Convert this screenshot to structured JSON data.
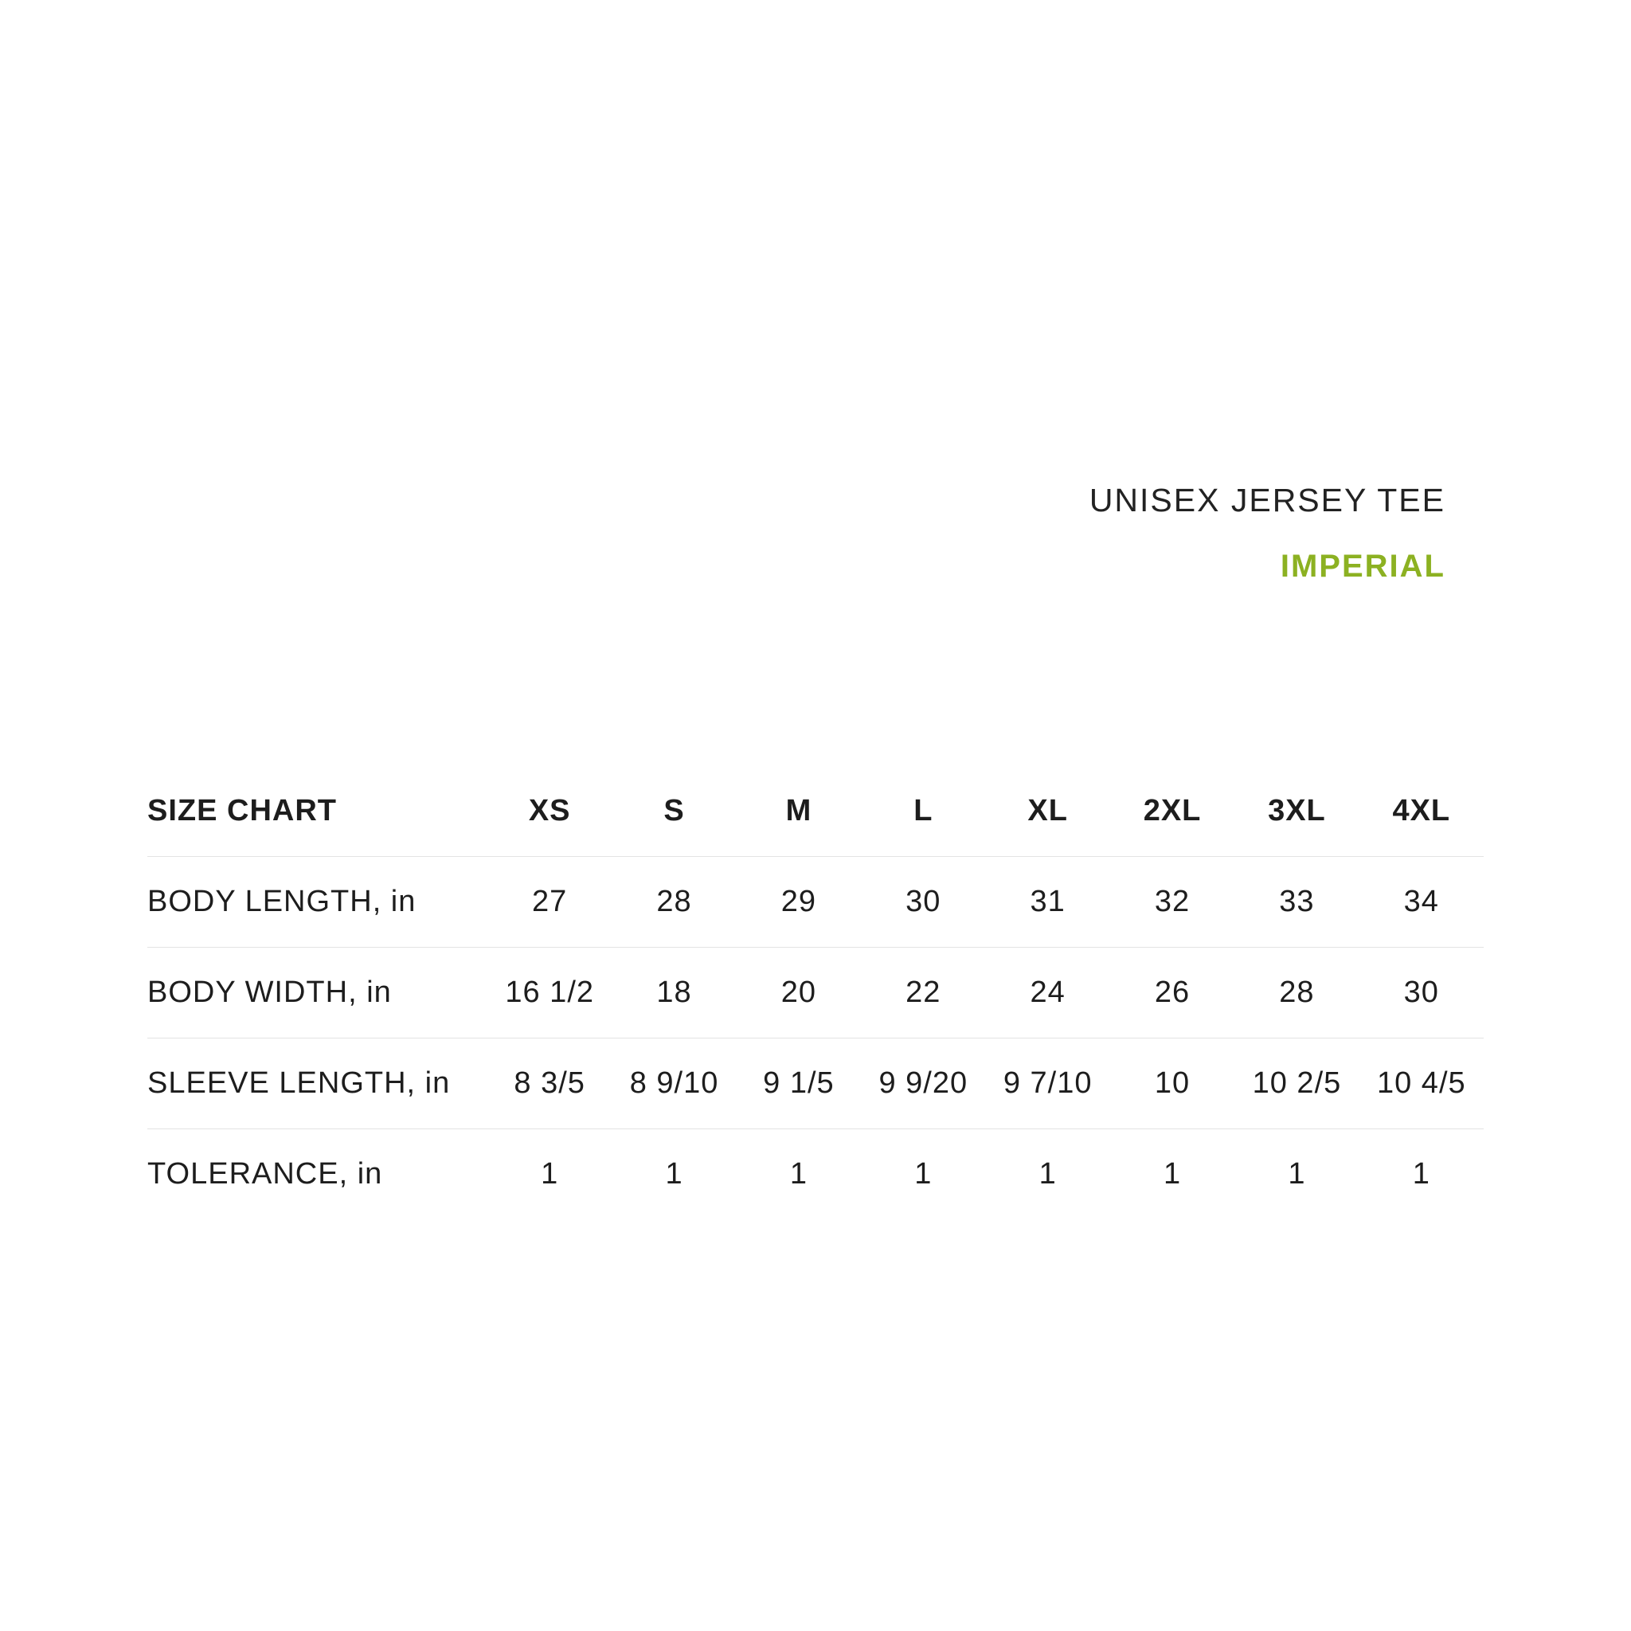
{
  "page": {
    "background_color": "#ffffff",
    "text_color": "#1d1d1d",
    "divider_color": "#e3e3e3"
  },
  "header": {
    "product_name": "UNISEX JERSEY TEE",
    "unit_label": "IMPERIAL",
    "accent_color": "#8CB122"
  },
  "table": {
    "title": "SIZE CHART",
    "columns": [
      "XS",
      "S",
      "M",
      "L",
      "XL",
      "2XL",
      "3XL",
      "4XL"
    ],
    "rows": [
      {
        "label": "BODY LENGTH, in",
        "values": [
          "27",
          "28",
          "29",
          "30",
          "31",
          "32",
          "33",
          "34"
        ]
      },
      {
        "label": "BODY WIDTH, in",
        "values": [
          "16 1/2",
          "18",
          "20",
          "22",
          "24",
          "26",
          "28",
          "30"
        ]
      },
      {
        "label": "SLEEVE LENGTH, in",
        "values": [
          "8 3/5",
          "8 9/10",
          "9 1/5",
          "9 9/20",
          "9 7/10",
          "10",
          "10 2/5",
          "10 4/5"
        ]
      },
      {
        "label": "TOLERANCE, in",
        "values": [
          "1",
          "1",
          "1",
          "1",
          "1",
          "1",
          "1",
          "1"
        ]
      }
    ]
  }
}
